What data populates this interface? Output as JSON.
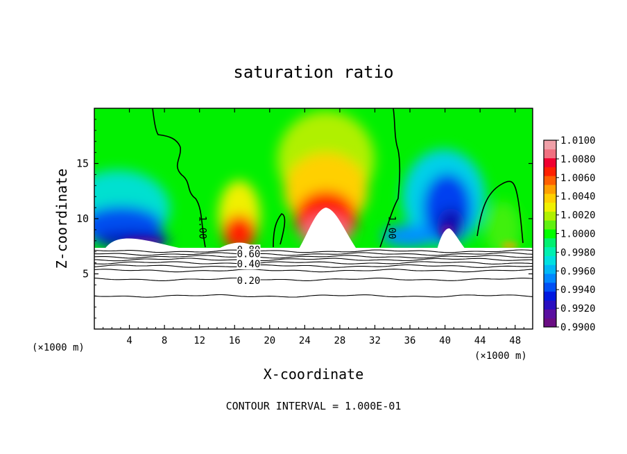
{
  "chart_data": {
    "type": "heatmap",
    "title": "saturation ratio",
    "xlabel": "X-coordinate",
    "ylabel": "Z-coordinate",
    "x_unit_left": "(×1000 m)",
    "x_unit_right": "(×1000 m)",
    "xlim": [
      0,
      50
    ],
    "ylim": [
      0,
      20
    ],
    "x_ticks": [
      4,
      8,
      12,
      16,
      20,
      24,
      28,
      32,
      36,
      40,
      44,
      48
    ],
    "y_ticks": [
      5,
      10,
      15
    ],
    "footer": "CONTOUR INTERVAL = 1.000E-01",
    "colorbar": {
      "min": 0.99,
      "max": 1.01,
      "tick_labels": [
        "1.0100",
        "1.0080",
        "1.0060",
        "1.0040",
        "1.0020",
        "1.0000",
        "0.9980",
        "0.9960",
        "0.9940",
        "0.9920",
        "0.9900"
      ],
      "colors": [
        "#6a0d83",
        "#5a0fa0",
        "#2a0fc0",
        "#0018e0",
        "#0050f5",
        "#0088ff",
        "#00b8f5",
        "#00e0e0",
        "#00f0b0",
        "#00f070",
        "#00ff00",
        "#60f010",
        "#b0f000",
        "#f0f000",
        "#ffd000",
        "#ffa000",
        "#ff6000",
        "#ff2000",
        "#f00030",
        "#f07080",
        "#f0a0a8"
      ]
    },
    "contour_labels": [
      {
        "text": "1.00",
        "x": 12.0,
        "z": 9.2
      },
      {
        "text": "1.00",
        "x": 33.6,
        "z": 9.2
      },
      {
        "text": "0.80",
        "x": 17.6,
        "z": 6.9
      },
      {
        "text": "0.60",
        "x": 17.6,
        "z": 6.5
      },
      {
        "text": "0.40",
        "x": 17.6,
        "z": 5.6
      },
      {
        "text": "0.20",
        "x": 17.6,
        "z": 4.1
      }
    ],
    "subsaturated_contours_z": [
      7.05,
      6.8,
      6.55,
      6.3,
      6.0,
      5.7,
      5.3,
      4.5,
      3.0
    ]
  }
}
